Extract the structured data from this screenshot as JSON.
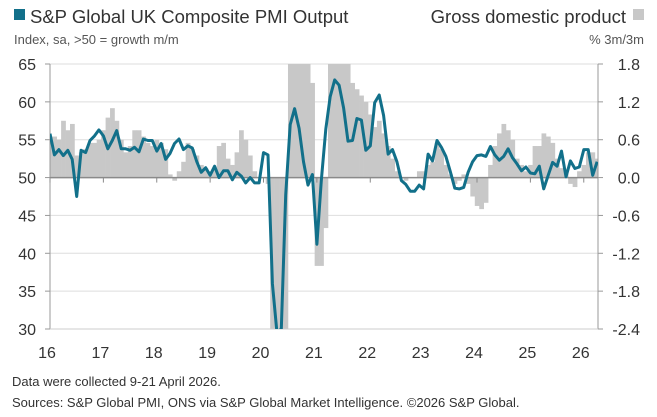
{
  "chart_data": {
    "type": "bar+line",
    "title_left": "S&P Global UK Composite PMI Output",
    "subtitle_left": "Index, sa, >50 = growth m/m",
    "title_right": "Gross domestic product",
    "subtitle_right": "% 3m/3m",
    "colors": {
      "pmi": "#12708a",
      "gdp": "#c8c8c8"
    },
    "x_start": "2016-01",
    "x_tick_labels": [
      "16",
      "17",
      "18",
      "19",
      "20",
      "21",
      "22",
      "23",
      "24",
      "25",
      "26"
    ],
    "y_left": {
      "ticks": [
        "65",
        "60",
        "55",
        "50",
        "45",
        "40",
        "35",
        "30"
      ],
      "range": [
        30,
        65
      ]
    },
    "y_right": {
      "ticks": [
        "1.8",
        "1.2",
        "0.6",
        "0.0",
        "-0.6",
        "-1.2",
        "-1.8",
        "-2.4"
      ],
      "range": [
        -2.4,
        1.8
      ]
    },
    "series": [
      {
        "name": "S&P Global UK Composite PMI Output",
        "type": "line",
        "frequency": "monthly",
        "values": [
          55.8,
          53.0,
          53.7,
          52.9,
          53.6,
          52.4,
          47.5,
          53.6,
          53.3,
          54.9,
          55.5,
          56.3,
          55.5,
          53.8,
          54.9,
          56.2,
          53.8,
          53.8,
          53.6,
          54.0,
          53.4,
          55.1,
          54.9,
          54.9,
          53.5,
          54.5,
          52.4,
          53.2,
          54.5,
          55.1,
          53.7,
          54.2,
          53.9,
          52.1,
          50.7,
          51.3,
          50.3,
          51.5,
          50.0,
          50.9,
          50.9,
          49.7,
          50.7,
          50.2,
          49.3,
          50.0,
          49.3,
          49.3,
          53.3,
          53.0,
          36.0,
          13.8,
          30.0,
          47.7,
          57.0,
          59.1,
          56.5,
          52.1,
          49.0,
          50.4,
          41.2,
          49.6,
          56.4,
          60.7,
          62.9,
          62.2,
          59.2,
          54.8,
          54.9,
          57.8,
          57.6,
          53.6,
          54.2,
          59.9,
          60.9,
          58.2,
          53.1,
          53.7,
          52.1,
          49.6,
          49.1,
          48.2,
          48.2,
          49.0,
          48.5,
          53.1,
          52.2,
          54.9,
          54.0,
          52.8,
          50.8,
          48.6,
          48.5,
          48.7,
          50.7,
          52.1,
          52.9,
          53.0,
          52.8,
          54.1,
          53.0,
          52.3,
          52.8,
          53.8,
          52.6,
          51.8,
          50.9,
          51.4,
          50.6,
          50.5,
          51.5,
          48.5,
          50.3,
          52.0,
          51.5,
          53.5,
          50.1,
          52.2,
          51.2,
          51.4,
          53.7,
          53.7,
          50.3,
          52.1
        ]
      },
      {
        "name": "Gross domestic product",
        "type": "bar",
        "frequency": "monthly",
        "values": [
          0.65,
          0.65,
          0.6,
          0.9,
          0.75,
          0.85,
          0.35,
          0.4,
          0.45,
          0.55,
          0.55,
          0.6,
          0.75,
          0.95,
          1.1,
          0.9,
          0.6,
          0.4,
          0.5,
          0.75,
          0.75,
          0.65,
          0.55,
          0.5,
          0.6,
          0.55,
          0.45,
          0.05,
          -0.05,
          0.1,
          0.25,
          0.55,
          0.45,
          0.35,
          0.2,
          0.15,
          0.1,
          0.15,
          0.5,
          0.55,
          0.3,
          0.2,
          0.4,
          0.75,
          0.6,
          0.35,
          0.1,
          0.0,
          0.0,
          -0.1,
          -2.5,
          -2.5,
          -2.5,
          -2.5,
          1.9,
          1.9,
          1.9,
          1.9,
          1.9,
          1.5,
          -1.4,
          -1.4,
          -0.8,
          1.9,
          1.9,
          1.9,
          1.9,
          1.9,
          1.5,
          1.4,
          1.3,
          1.2,
          1.0,
          0.8,
          0.9,
          0.7,
          0.5,
          0.3,
          0.1,
          0.0,
          -0.05,
          0.0,
          0.0,
          0.1,
          0.1,
          0.2,
          0.25,
          0.55,
          0.45,
          0.2,
          0.05,
          -0.1,
          -0.05,
          0.05,
          -0.1,
          -0.3,
          -0.45,
          -0.5,
          -0.4,
          0.2,
          0.5,
          0.7,
          0.85,
          0.75,
          0.6,
          0.3,
          0.2,
          0.1,
          0.2,
          0.5,
          0.5,
          0.7,
          0.65,
          0.55,
          0.3,
          0.15,
          0.1,
          -0.1,
          -0.15,
          0.1,
          0.2,
          0.4,
          0.4,
          0.3
        ]
      }
    ],
    "grid": true
  },
  "footer": {
    "note": "Data were collected 9-21 April 2026.",
    "sources": "Sources: S&P Global PMI, ONS via S&P Global Market Intelligence. ©2026 S&P Global."
  }
}
